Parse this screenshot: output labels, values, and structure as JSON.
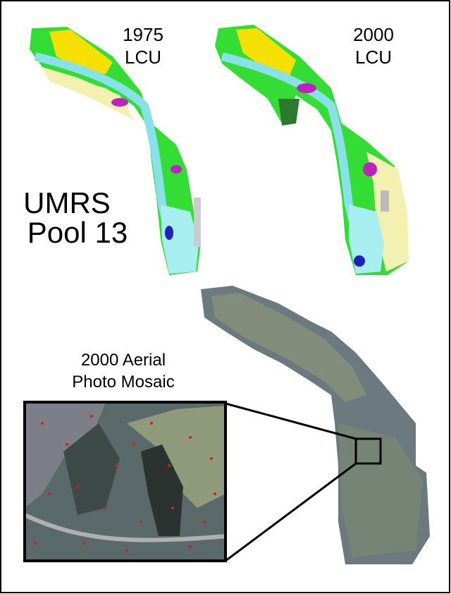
{
  "maps": {
    "lcu_1975": {
      "year": "1975",
      "label": "LCU"
    },
    "lcu_2000": {
      "year": "2000",
      "label": "LCU"
    }
  },
  "site": {
    "line1": "UMRS",
    "line2": "Pool 13"
  },
  "mosaic": {
    "line1": "2000 Aerial",
    "line2": "Photo Mosaic"
  }
}
